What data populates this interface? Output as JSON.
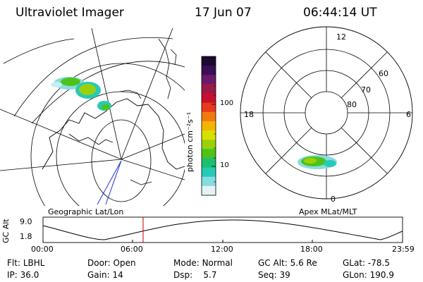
{
  "header": {
    "instrument": "Ultraviolet Imager",
    "date": "17 Jun 07",
    "time": "06:44:14 UT"
  },
  "colorbar": {
    "unit_label": "photon cm⁻²s⁻¹",
    "ticks": [
      "100",
      "10"
    ],
    "colors": [
      "#1a0a2e",
      "#3b0f55",
      "#6a1a6a",
      "#9b1a4a",
      "#c8102e",
      "#e83a1a",
      "#f07a10",
      "#f6b300",
      "#d9e000",
      "#9ad10a",
      "#4ec21a",
      "#1cbf6e",
      "#27c9b7",
      "#86dde0",
      "#e6f3f6"
    ]
  },
  "left_map": {
    "caption": "Geographic Lat/Lon"
  },
  "right_map": {
    "caption": "Apex MLat/MLT",
    "mlt_labels": {
      "top": "12",
      "left": "18",
      "right": "6",
      "bottom": "0"
    },
    "lat_labels": [
      "60",
      "70",
      "80"
    ]
  },
  "altitude_plot": {
    "ylabel": "GC Alt",
    "y_ticks": [
      "9.0",
      "1.8"
    ],
    "x_ticks": [
      "00:00",
      "06:00",
      "12:00",
      "18:00",
      "23:59"
    ],
    "current_time_color": "#c00000"
  },
  "info": {
    "flt_label": "Flt:",
    "flt_value": "LBHL",
    "ip_label": "IP:",
    "ip_value": "36.0",
    "door_label": "Door:",
    "door_value": "Open",
    "gain_label": "Gain:",
    "gain_value": "14",
    "mode_label": "Mode:",
    "mode_value": "Normal",
    "dsp_label": "Dsp:",
    "dsp_value": "5.7",
    "gcalt_label": "GC Alt:",
    "gcalt_value": "5.6 Re",
    "seq_label": "Seq:",
    "seq_value": "39",
    "glat_label": "GLat:",
    "glat_value": "-78.5",
    "glon_label": "GLon:",
    "glon_value": "190.9"
  }
}
